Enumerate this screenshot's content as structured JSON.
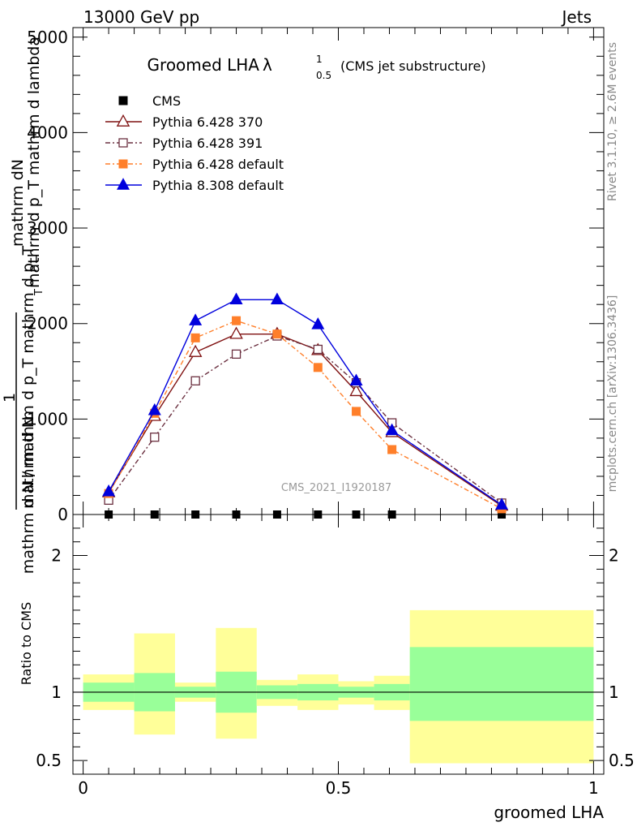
{
  "header": {
    "left": "13000 GeV pp",
    "right": "Jets"
  },
  "chart_data": [
    {
      "type": "line",
      "title_main": "Groomed LHA",
      "title_symbol": "λ",
      "title_sup": "1",
      "title_sub": "0.5",
      "title_paren": "(CMS jet substructure)",
      "ylabel_numerator": "mathrm dN",
      "ylabel_denominator": "mathrm d p_T mathrm d lambda",
      "ylabel_side": "mathrm d N / mathrm d p_T mathrm d p_T",
      "ylabel_side_suffix": "T",
      "ylabel_one": "1",
      "ylabel_denominator_left": "mathrm d N",
      "ylim": [
        0,
        5100
      ],
      "xlim": [
        -0.02,
        1.02
      ],
      "y_ticks": [
        0,
        1000,
        2000,
        3000,
        4000,
        5000
      ],
      "y_tick_labels": [
        "0",
        "1000",
        "2000",
        "3000",
        "4000",
        "5000"
      ],
      "watermark": "CMS_2021_I1920187",
      "legend_placement": "top-left",
      "series": [
        {
          "name": "CMS",
          "color": "#000000",
          "marker": "square",
          "x": [
            0.05,
            0.14,
            0.22,
            0.3,
            0.38,
            0.46,
            0.535,
            0.605,
            0.82
          ],
          "y": [
            0,
            0,
            0,
            0,
            0,
            0,
            0,
            0,
            0
          ]
        },
        {
          "name": "Pythia 6.428 370",
          "color": "#7f1010",
          "marker": "triangle-open",
          "dash": "",
          "x": [
            0.05,
            0.14,
            0.22,
            0.3,
            0.38,
            0.46,
            0.535,
            0.605,
            0.82
          ],
          "y": [
            230,
            1030,
            1700,
            1890,
            1890,
            1720,
            1290,
            860,
            90
          ]
        },
        {
          "name": "Pythia 6.428 391",
          "color": "#6b3040",
          "marker": "square-open",
          "dash": "6,3,2,3",
          "x": [
            0.05,
            0.14,
            0.22,
            0.3,
            0.38,
            0.46,
            0.535,
            0.605,
            0.82
          ],
          "y": [
            150,
            810,
            1400,
            1680,
            1870,
            1730,
            1380,
            960,
            120
          ]
        },
        {
          "name": "Pythia 6.428 default",
          "color": "#ff7f2a",
          "marker": "square",
          "dash": "6,3,2,3",
          "x": [
            0.05,
            0.14,
            0.22,
            0.3,
            0.38,
            0.46,
            0.535,
            0.605,
            0.82
          ],
          "y": [
            220,
            1060,
            1850,
            2030,
            1890,
            1540,
            1080,
            680,
            60
          ]
        },
        {
          "name": "Pythia 8.308 default",
          "color": "#0000dd",
          "marker": "triangle",
          "dash": "",
          "x": [
            0.05,
            0.14,
            0.22,
            0.3,
            0.38,
            0.46,
            0.535,
            0.605,
            0.82
          ],
          "y": [
            240,
            1090,
            2030,
            2250,
            2250,
            1990,
            1400,
            880,
            100
          ]
        }
      ]
    },
    {
      "type": "bar",
      "ylabel": "Ratio to CMS",
      "xlabel": "groomed LHA",
      "ylim": [
        0.4,
        2.3
      ],
      "xlim": [
        -0.02,
        1.02
      ],
      "y_ticks": [
        0.5,
        1,
        2
      ],
      "y_tick_labels": [
        "0.5",
        "1",
        "2"
      ],
      "x_ticks": [
        0,
        0.5,
        1
      ],
      "x_tick_labels": [
        "0",
        "0.5",
        "1"
      ],
      "reference": 1,
      "band_colors": {
        "inner": "#99ff99",
        "outer": "#ffff99"
      },
      "bins": [
        {
          "lo": 0.0,
          "hi": 0.1,
          "inner": [
            0.93,
            1.07
          ],
          "outer": [
            0.87,
            1.13
          ]
        },
        {
          "lo": 0.1,
          "hi": 0.18,
          "inner": [
            0.86,
            1.14
          ],
          "outer": [
            0.69,
            1.43
          ]
        },
        {
          "lo": 0.18,
          "hi": 0.26,
          "inner": [
            0.96,
            1.04
          ],
          "outer": [
            0.93,
            1.07
          ]
        },
        {
          "lo": 0.26,
          "hi": 0.34,
          "inner": [
            0.85,
            1.15
          ],
          "outer": [
            0.66,
            1.47
          ]
        },
        {
          "lo": 0.34,
          "hi": 0.42,
          "inner": [
            0.95,
            1.05
          ],
          "outer": [
            0.9,
            1.09
          ]
        },
        {
          "lo": 0.42,
          "hi": 0.5,
          "inner": [
            0.94,
            1.06
          ],
          "outer": [
            0.87,
            1.13
          ]
        },
        {
          "lo": 0.5,
          "hi": 0.57,
          "inner": [
            0.96,
            1.04
          ],
          "outer": [
            0.91,
            1.08
          ]
        },
        {
          "lo": 0.57,
          "hi": 0.64,
          "inner": [
            0.94,
            1.06
          ],
          "outer": [
            0.87,
            1.12
          ]
        },
        {
          "lo": 0.64,
          "hi": 1.0,
          "inner": [
            0.79,
            1.33
          ],
          "outer": [
            0.48,
            1.6
          ]
        }
      ]
    }
  ],
  "side_labels": {
    "rivet": "Rivet 3.1.10, ≥ 2.6M events",
    "mcplots": "mcplots.cern.ch [arXiv:1306.3436]"
  }
}
